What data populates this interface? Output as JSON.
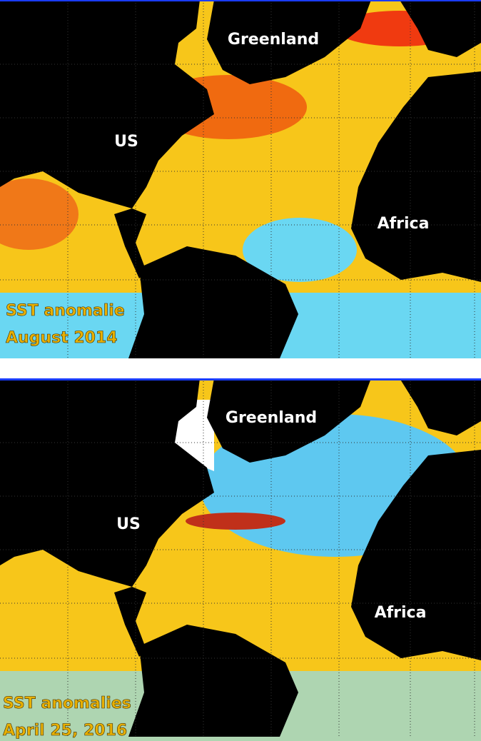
{
  "panels": [
    {
      "labels": {
        "greenland": "Greenland",
        "us": "US",
        "africa": "Africa"
      },
      "caption": [
        "SST anomalie",
        "August 2014"
      ]
    },
    {
      "labels": {
        "greenland": "Greenland",
        "us": "US",
        "africa": "Africa"
      },
      "caption": [
        "SST anomalies",
        "April 25, 2016"
      ]
    }
  ]
}
